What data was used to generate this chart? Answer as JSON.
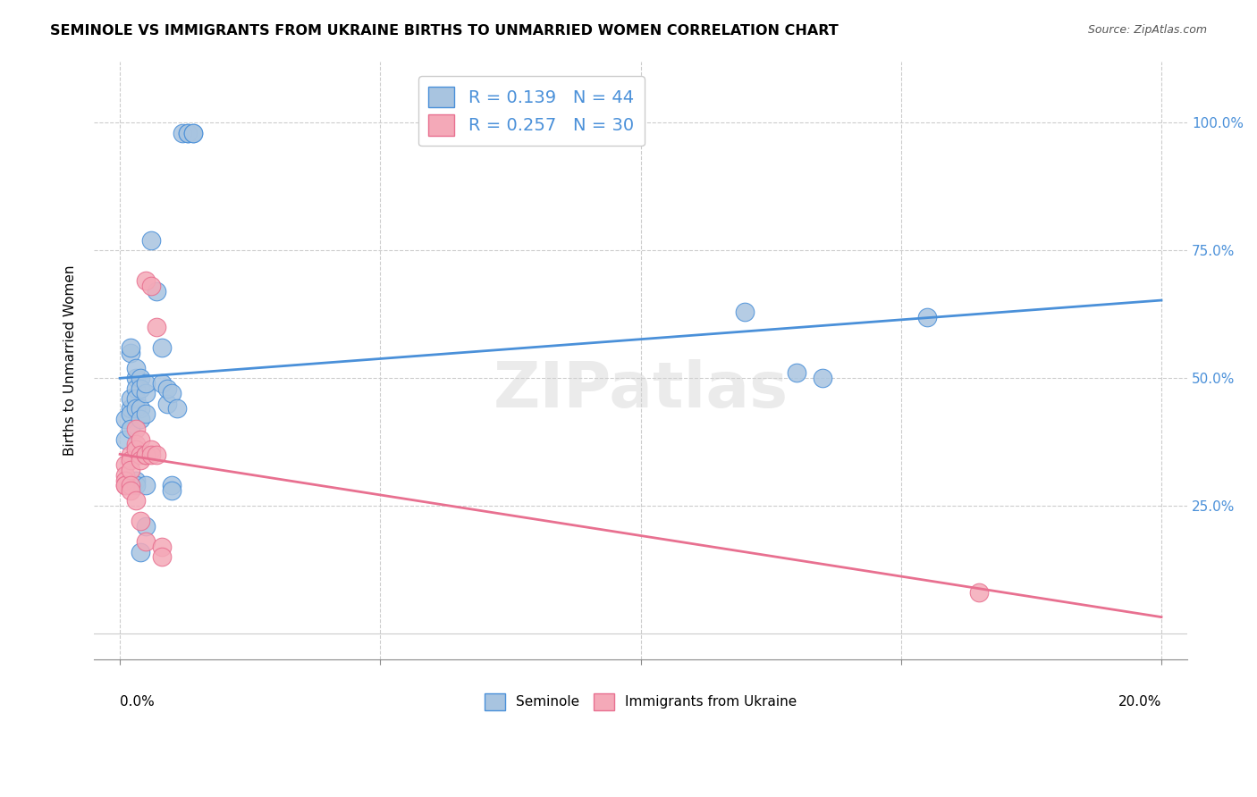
{
  "title": "SEMINOLE VS IMMIGRANTS FROM UKRAINE BIRTHS TO UNMARRIED WOMEN CORRELATION CHART",
  "source": "Source: ZipAtlas.com",
  "ylabel": "Births to Unmarried Women",
  "legend_seminole": "R = 0.139   N = 44",
  "legend_ukraine": "R = 0.257   N = 30",
  "seminole_color": "#a8c4e0",
  "ukraine_color": "#f4a9b8",
  "seminole_line_color": "#4a90d9",
  "ukraine_line_color": "#e87090",
  "watermark": "ZIPatlas",
  "seminole_points": [
    [
      0.001,
      0.42
    ],
    [
      0.001,
      0.38
    ],
    [
      0.002,
      0.55
    ],
    [
      0.002,
      0.56
    ],
    [
      0.002,
      0.44
    ],
    [
      0.002,
      0.46
    ],
    [
      0.002,
      0.43
    ],
    [
      0.002,
      0.4
    ],
    [
      0.003,
      0.5
    ],
    [
      0.003,
      0.52
    ],
    [
      0.003,
      0.48
    ],
    [
      0.003,
      0.46
    ],
    [
      0.003,
      0.44
    ],
    [
      0.003,
      0.3
    ],
    [
      0.003,
      0.29
    ],
    [
      0.004,
      0.5
    ],
    [
      0.004,
      0.48
    ],
    [
      0.004,
      0.44
    ],
    [
      0.004,
      0.42
    ],
    [
      0.004,
      0.16
    ],
    [
      0.005,
      0.47
    ],
    [
      0.005,
      0.49
    ],
    [
      0.005,
      0.43
    ],
    [
      0.005,
      0.29
    ],
    [
      0.005,
      0.21
    ],
    [
      0.006,
      0.77
    ],
    [
      0.007,
      0.67
    ],
    [
      0.008,
      0.49
    ],
    [
      0.008,
      0.56
    ],
    [
      0.009,
      0.45
    ],
    [
      0.009,
      0.48
    ],
    [
      0.01,
      0.47
    ],
    [
      0.01,
      0.29
    ],
    [
      0.01,
      0.28
    ],
    [
      0.011,
      0.44
    ],
    [
      0.012,
      0.98
    ],
    [
      0.013,
      0.98
    ],
    [
      0.013,
      0.98
    ],
    [
      0.014,
      0.98
    ],
    [
      0.014,
      0.98
    ],
    [
      0.12,
      0.63
    ],
    [
      0.13,
      0.51
    ],
    [
      0.135,
      0.5
    ],
    [
      0.155,
      0.62
    ]
  ],
  "ukraine_points": [
    [
      0.001,
      0.33
    ],
    [
      0.001,
      0.31
    ],
    [
      0.001,
      0.3
    ],
    [
      0.001,
      0.29
    ],
    [
      0.001,
      0.29
    ],
    [
      0.002,
      0.35
    ],
    [
      0.002,
      0.34
    ],
    [
      0.002,
      0.32
    ],
    [
      0.002,
      0.29
    ],
    [
      0.002,
      0.28
    ],
    [
      0.003,
      0.4
    ],
    [
      0.003,
      0.37
    ],
    [
      0.003,
      0.36
    ],
    [
      0.003,
      0.26
    ],
    [
      0.004,
      0.38
    ],
    [
      0.004,
      0.35
    ],
    [
      0.004,
      0.34
    ],
    [
      0.004,
      0.22
    ],
    [
      0.005,
      0.69
    ],
    [
      0.005,
      0.35
    ],
    [
      0.005,
      0.35
    ],
    [
      0.005,
      0.18
    ],
    [
      0.006,
      0.68
    ],
    [
      0.006,
      0.36
    ],
    [
      0.006,
      0.35
    ],
    [
      0.007,
      0.6
    ],
    [
      0.007,
      0.35
    ],
    [
      0.008,
      0.17
    ],
    [
      0.008,
      0.15
    ],
    [
      0.165,
      0.08
    ]
  ],
  "xlim": [
    -0.005,
    0.205
  ],
  "ylim": [
    -0.05,
    1.12
  ],
  "ytick_vals": [
    0.25,
    0.5,
    0.75,
    1.0
  ],
  "ytick_labels": [
    "25.0%",
    "50.0%",
    "75.0%",
    "100.0%"
  ],
  "xtick_vals": [
    0.0,
    0.05,
    0.1,
    0.15,
    0.2
  ],
  "figsize": [
    14.06,
    8.92
  ],
  "dpi": 100
}
